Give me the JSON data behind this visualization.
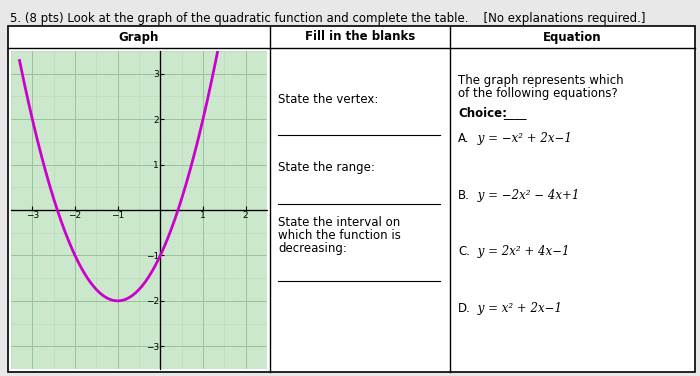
{
  "title": "5. (8 pts) Look at the graph of the quadratic function and complete the table.    [No explanations required.]",
  "col_headers": [
    "Graph",
    "Fill in the blanks",
    "Equation"
  ],
  "fill_in_blanks": {
    "q1": "State the vertex:",
    "q2": "State the range:",
    "q3_line1": "State the interval on",
    "q3_line2": "which the function is",
    "q3_line3": "decreasing:"
  },
  "equation_col": {
    "intro_line1": "The graph represents which",
    "intro_line2": "of the following equations?",
    "choice_label": "Choice:",
    "choice_blank": "____",
    "A_label": "A.",
    "A_eq": " y = −x² + 2x−1",
    "B_label": "B.",
    "B_eq": " y = −2x² − 4x+1",
    "C_label": "C.",
    "C_eq": " y = 2x² + 4x−1",
    "D_label": "D.",
    "D_eq": " y = x² + 2x−1"
  },
  "graph": {
    "xlim": [
      -3.5,
      2.5
    ],
    "ylim": [
      -3.5,
      3.5
    ],
    "xticks": [
      -3,
      -2,
      -1,
      1,
      2
    ],
    "yticks": [
      -3,
      -2,
      -1,
      1,
      2,
      3
    ],
    "curve_color": "#cc00cc",
    "grid_color": "#b8d8b8",
    "bg_color": "#cce8cc",
    "axis_color": "#000000"
  },
  "page_bg": "#e8e8e8",
  "table_bg": "#ffffff",
  "border_color": "#000000",
  "font_size_title": 8.5,
  "font_size_header": 8.5,
  "font_size_cell": 8.5
}
